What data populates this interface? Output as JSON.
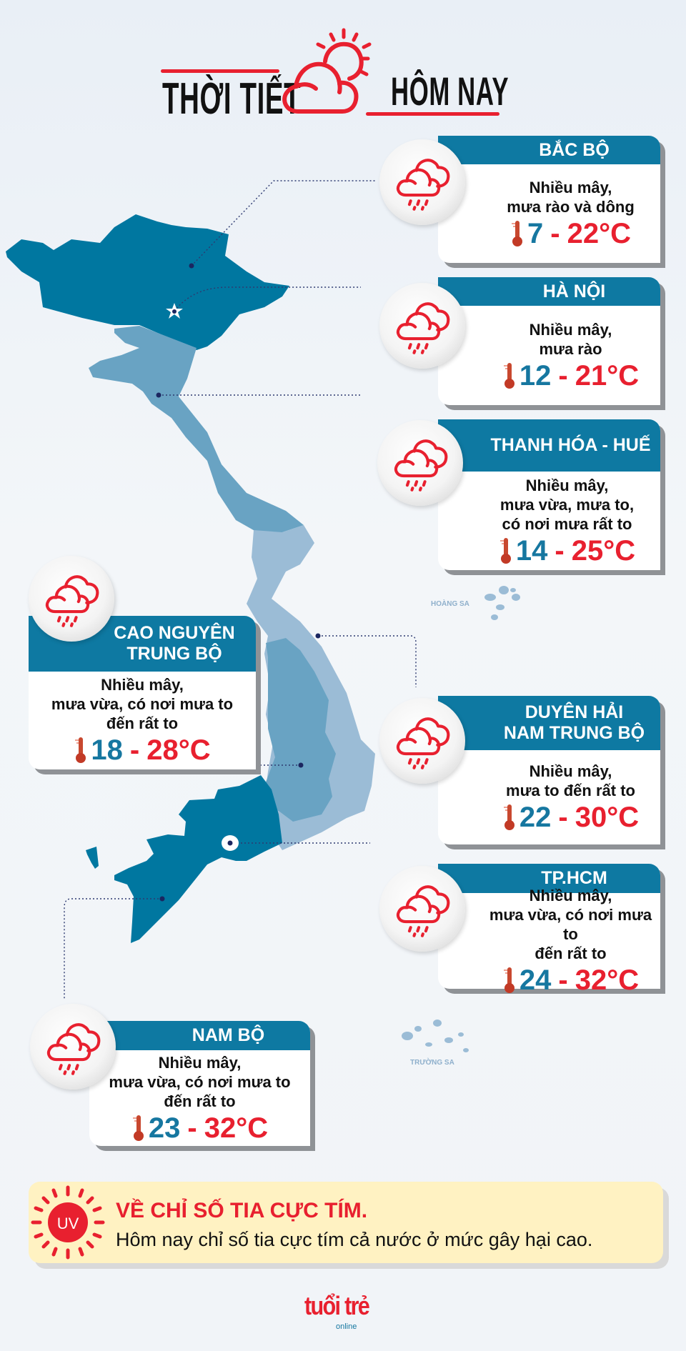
{
  "header": {
    "title_left": "THỜI TIẾT",
    "title_right": "HÔM NAY",
    "icon": "sun-cloud-icon"
  },
  "colors": {
    "accent_red": "#e8202f",
    "header_teal": "#0e79a2",
    "temp_low_blue": "#1677a0",
    "map_dark": "#0077a0",
    "map_medium": "#69a3c3",
    "map_light": "#9bbcd6",
    "uv_bg": "#fff2c2"
  },
  "temp_separator": "-",
  "unit": "°C",
  "regions": [
    {
      "name": "BẮC BỘ",
      "description": "Nhiều mây,\nmưa rào và dông",
      "temp_low": "7",
      "temp_high": "22",
      "icon": "cloud-rain-icon"
    },
    {
      "name": "HÀ NỘI",
      "description": "Nhiều mây,\nmưa rào",
      "temp_low": "12",
      "temp_high": "21",
      "icon": "cloud-rain-icon"
    },
    {
      "name": "THANH HÓA - HUẾ",
      "description": "Nhiều mây,\nmưa vừa, mưa to,\ncó nơi mưa rất to",
      "temp_low": "14",
      "temp_high": "25",
      "icon": "cloud-rain-icon"
    },
    {
      "name": "CAO NGUYÊN\nTRUNG BỘ",
      "description": "Nhiều mây,\nmưa vừa, có nơi mưa to\nđến rất to",
      "temp_low": "18",
      "temp_high": "28",
      "icon": "cloud-rain-icon"
    },
    {
      "name": "DUYÊN HẢI\nNAM TRUNG BỘ",
      "description": "Nhiều mây,\nmưa to đến rất to",
      "temp_low": "22",
      "temp_high": "30",
      "icon": "cloud-rain-icon"
    },
    {
      "name": "TP.HCM",
      "description": "Nhiều mây,\nmưa vừa, có nơi mưa to\nđến rất to",
      "temp_low": "24",
      "temp_high": "32",
      "icon": "cloud-rain-icon"
    },
    {
      "name": "NAM BỘ",
      "description": "Nhiều mây,\nmưa vừa, có nơi mưa to\nđến rất to",
      "temp_low": "23",
      "temp_high": "32",
      "icon": "cloud-rain-icon"
    }
  ],
  "map": {
    "islands": [
      "HOÀNG SA",
      "TRƯỜNG SA"
    ]
  },
  "uv": {
    "badge": "UV",
    "title": "VỀ CHỈ SỐ TIA CỰC TÍM.",
    "text": "Hôm nay chỉ số tia cực tím cả nước ở mức gây hại cao."
  },
  "footer": {
    "logo_main": "tuổi trẻ",
    "logo_sub": "online"
  }
}
